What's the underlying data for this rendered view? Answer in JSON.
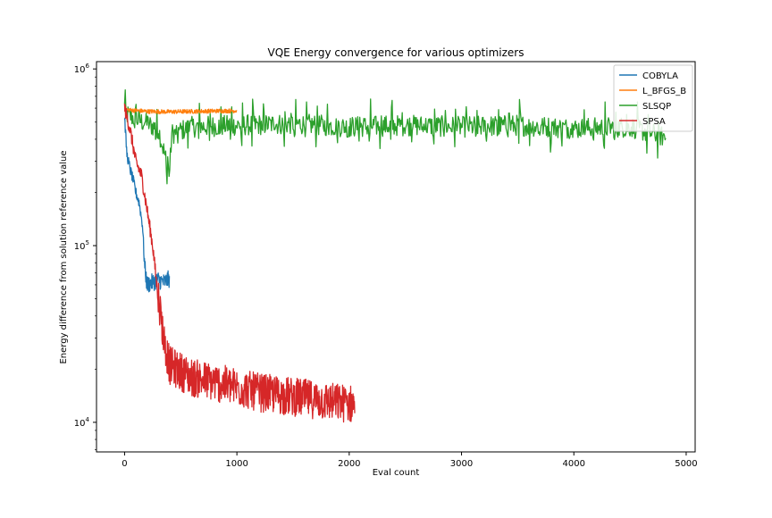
{
  "chart_data": {
    "type": "line",
    "title": "VQE Energy convergence for various optimizers",
    "xlabel": "Eval count",
    "ylabel": "Energy difference from solution reference value",
    "yscale": "log",
    "xlim": [
      -250,
      5080
    ],
    "ylim": [
      6800,
      1100000
    ],
    "xticks": [
      0,
      1000,
      2000,
      3000,
      4000,
      5000
    ],
    "xtick_labels": [
      "0",
      "1000",
      "2000",
      "3000",
      "4000",
      "5000"
    ],
    "yticks": [
      10000,
      100000,
      1000000
    ],
    "ytick_labels": [
      {
        "base": "10",
        "exp": "4"
      },
      {
        "base": "10",
        "exp": "5"
      },
      {
        "base": "10",
        "exp": "6"
      }
    ],
    "grid": false,
    "legend_position": "top-right",
    "series": [
      {
        "name": "COBYLA",
        "color": "#1f77b4",
        "x_max": 400,
        "points": [
          [
            0,
            540000
          ],
          [
            20,
            330000
          ],
          [
            50,
            270000
          ],
          [
            80,
            230000
          ],
          [
            100,
            200000
          ],
          [
            130,
            175000
          ],
          [
            160,
            130000
          ],
          [
            180,
            75000
          ],
          [
            200,
            60000
          ],
          [
            250,
            62000
          ],
          [
            300,
            64000
          ],
          [
            350,
            62000
          ],
          [
            400,
            65000
          ]
        ]
      },
      {
        "name": "L_BFGS_B",
        "color": "#ff7f0e",
        "x_max": 1000,
        "points": [
          [
            0,
            590000
          ],
          [
            50,
            585000
          ],
          [
            200,
            575000
          ],
          [
            400,
            572000
          ],
          [
            600,
            575000
          ],
          [
            800,
            578000
          ],
          [
            1000,
            580000
          ]
        ]
      },
      {
        "name": "SLSQP",
        "color": "#2ca02c",
        "x_max": 4820,
        "points": [
          [
            0,
            560000
          ],
          [
            100,
            520000
          ],
          [
            300,
            460000
          ],
          [
            400,
            255000
          ],
          [
            420,
            430000
          ],
          [
            600,
            470000
          ],
          [
            1000,
            480000
          ],
          [
            1500,
            490000
          ],
          [
            2000,
            470000
          ],
          [
            2500,
            480000
          ],
          [
            3000,
            470000
          ],
          [
            3500,
            480000
          ],
          [
            4000,
            460000
          ],
          [
            4500,
            470000
          ],
          [
            4820,
            410000
          ]
        ]
      },
      {
        "name": "SPSA",
        "color": "#d62728",
        "x_max": 2050,
        "points": [
          [
            0,
            600000
          ],
          [
            50,
            450000
          ],
          [
            100,
            300000
          ],
          [
            150,
            250000
          ],
          [
            200,
            160000
          ],
          [
            250,
            100000
          ],
          [
            300,
            50000
          ],
          [
            350,
            28000
          ],
          [
            400,
            20000
          ],
          [
            600,
            17000
          ],
          [
            800,
            16000
          ],
          [
            1000,
            15000
          ],
          [
            1200,
            14000
          ],
          [
            1400,
            13500
          ],
          [
            1600,
            13000
          ],
          [
            1800,
            12500
          ],
          [
            2050,
            12000
          ]
        ]
      }
    ]
  }
}
